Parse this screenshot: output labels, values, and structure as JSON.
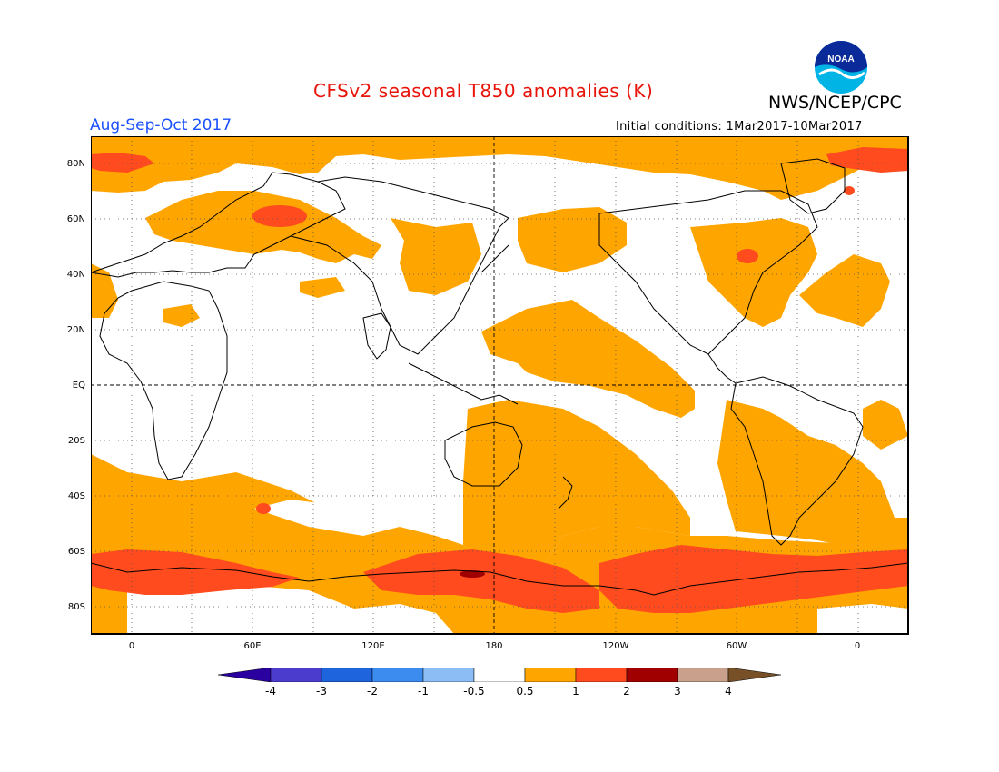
{
  "header": {
    "title": "CFSv2 seasonal T850 anomalies (K)",
    "agency": "NWS/NCEP/CPC",
    "period": "Aug-Sep-Oct 2017",
    "initial_conditions": "Initial conditions: 1Mar2017-10Mar2017",
    "logo_text": "NOAA"
  },
  "map": {
    "projection": "equirectangular",
    "lat_range": [
      -90,
      90
    ],
    "lon_range": [
      "20W",
      "20E (wrapping)"
    ],
    "lat_labels": [
      "80N",
      "60N",
      "40N",
      "20N",
      "EQ",
      "20S",
      "40S",
      "60S",
      "80S"
    ],
    "lon_labels": [
      "0",
      "60E",
      "120E",
      "180",
      "120W",
      "60W",
      "0"
    ],
    "colors": {
      "ocean_bg": "#ffffff",
      "anom_05_1": "#ffa500",
      "anom_1_2": "#ff4b1e",
      "anom_2_3": "#a00000",
      "coast": "#000000",
      "grid": "#555555"
    }
  },
  "colorbar": {
    "labels": [
      "-4",
      "-3",
      "-2",
      "-1",
      "-0.5",
      "0.5",
      "1",
      "2",
      "3",
      "4"
    ],
    "colors": [
      "#2a00a0",
      "#4b3ccd",
      "#1e64dc",
      "#3c8cf0",
      "#8cbef5",
      "#ffffff",
      "#ffa500",
      "#ff4b1e",
      "#a00000",
      "#c8a08c",
      "#785028"
    ]
  }
}
